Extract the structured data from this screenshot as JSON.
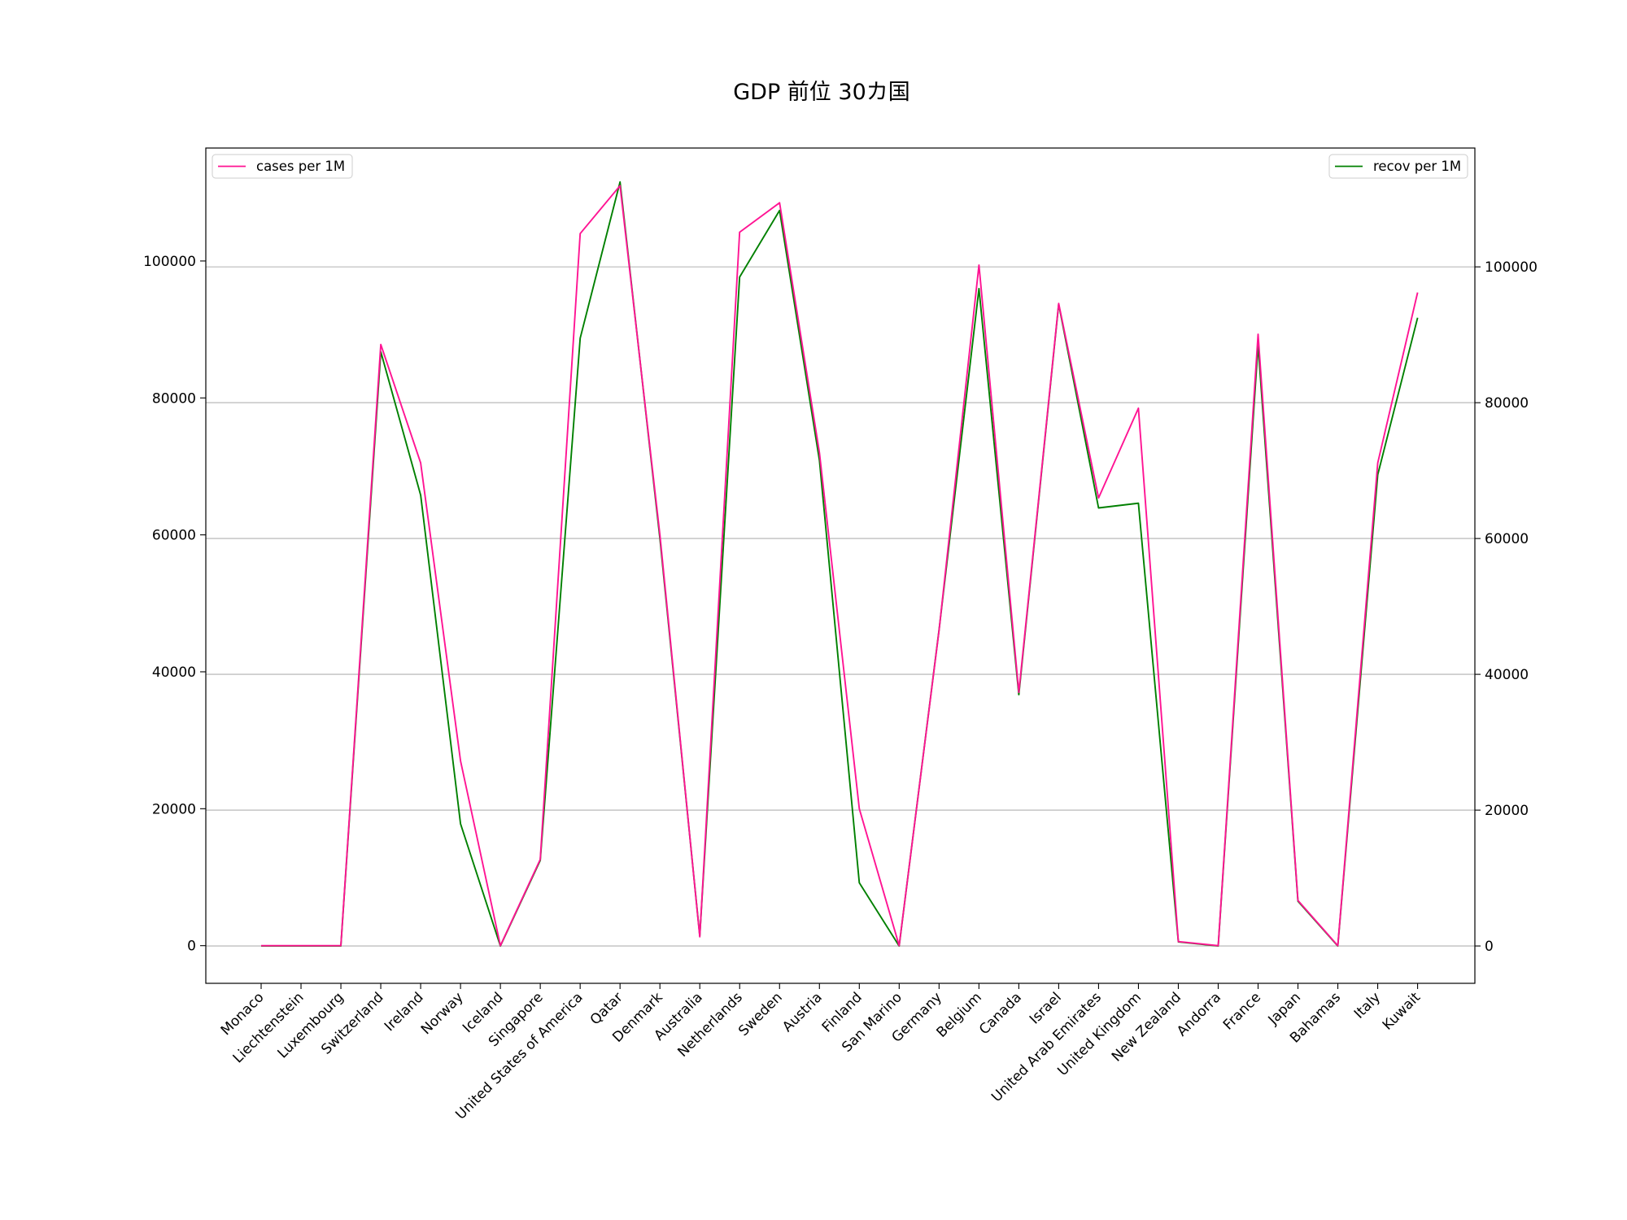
{
  "chart_data": {
    "type": "line",
    "title": "GDP 前位 30カ国",
    "xlabel": "",
    "ylabel": "",
    "categories": [
      "Monaco",
      "Liechtenstein",
      "Luxembourg",
      "Switzerland",
      "Ireland",
      "Norway",
      "Iceland",
      "Singapore",
      "United States of America",
      "Qatar",
      "Denmark",
      "Australia",
      "Netherlands",
      "Sweden",
      "Austria",
      "Finland",
      "San Marino",
      "Germany",
      "Belgium",
      "Canada",
      "Israel",
      "United Arab Emirates",
      "United Kingdom",
      "New Zealand",
      "Andorra",
      "France",
      "Japan",
      "Bahamas",
      "Italy",
      "Kuwait"
    ],
    "series": [
      {
        "name": "cases per 1M",
        "axis": "left",
        "color": "#ff1493",
        "values": [
          0,
          0,
          0,
          87800,
          70500,
          27000,
          0,
          12600,
          104000,
          111000,
          60000,
          1300,
          104200,
          108500,
          72000,
          20000,
          0,
          46000,
          99400,
          37000,
          93800,
          65400,
          78500,
          600,
          0,
          89300,
          6600,
          0,
          70500,
          95400
        ]
      },
      {
        "name": "recov per 1M",
        "axis": "right",
        "color": "#008000",
        "values": [
          0,
          0,
          0,
          87500,
          66400,
          18000,
          0,
          12600,
          89500,
          112500,
          60000,
          1500,
          98500,
          108300,
          71500,
          9300,
          0,
          46500,
          96800,
          37000,
          94500,
          64500,
          65200,
          600,
          0,
          88500,
          6600,
          0,
          69400,
          92500
        ]
      }
    ],
    "ylim_left": [
      -5500,
      116500
    ],
    "ylim_right": [
      -5500,
      117500
    ],
    "yticks_left": [
      0,
      20000,
      40000,
      60000,
      80000,
      100000
    ],
    "yticks_right": [
      0,
      20000,
      40000,
      60000,
      80000,
      100000
    ],
    "grid": "horizontal (right axis)",
    "legends": [
      {
        "series": "cases per 1M",
        "placement": "top-left"
      },
      {
        "series": "recov per 1M",
        "placement": "top-right"
      }
    ]
  }
}
